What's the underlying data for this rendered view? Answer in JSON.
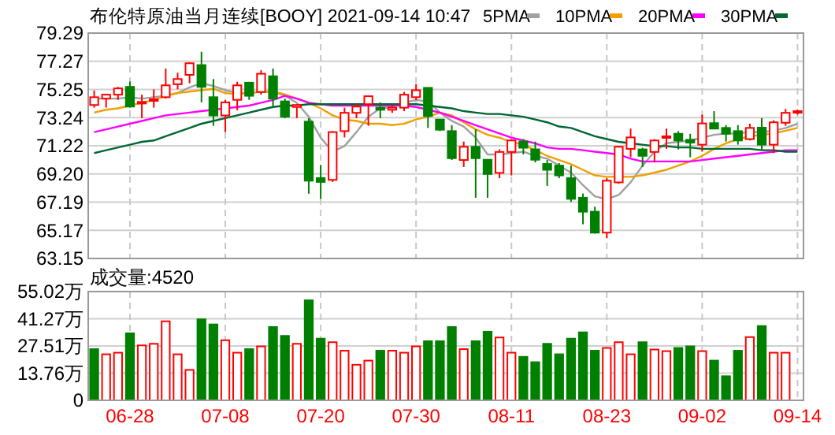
{
  "chart_data": [
    {
      "type": "candlestick",
      "title": "布伦特原油当月连续[BOOY] 2021-09-14 10:47",
      "categories": [
        null,
        null,
        null,
        null,
        null,
        null,
        null,
        null,
        null,
        null,
        null,
        null,
        null,
        null,
        null,
        null,
        null,
        null,
        null,
        null,
        null,
        null,
        null,
        null,
        null,
        null,
        null,
        null,
        null,
        null,
        null,
        null,
        null,
        null,
        null,
        null,
        null,
        null,
        null,
        null,
        null,
        null,
        null,
        null,
        null,
        null,
        null,
        null,
        null,
        null,
        null,
        null,
        null,
        null,
        null,
        null,
        null,
        null,
        null,
        null
      ],
      "ohlc": [
        [
          74.14,
          75.18,
          73.95,
          74.7
        ],
        [
          74.6,
          74.95,
          73.95,
          74.88
        ],
        [
          74.88,
          75.44,
          74.51,
          75.33
        ],
        [
          75.44,
          75.82,
          73.95,
          74.03
        ],
        [
          74.25,
          74.88,
          73.2,
          74.36
        ],
        [
          74.45,
          75.26,
          73.95,
          74.55
        ],
        [
          74.7,
          76.75,
          74.6,
          75.55
        ],
        [
          75.63,
          76.45,
          75.26,
          76.0
        ],
        [
          76.3,
          77.2,
          75.7,
          77.13
        ],
        [
          77.0,
          77.95,
          74.33,
          75.44
        ],
        [
          74.7,
          76.0,
          72.65,
          73.39
        ],
        [
          73.39,
          74.51,
          72.2,
          74.33
        ],
        [
          74.51,
          75.8,
          73.76,
          75.55
        ],
        [
          75.74,
          75.8,
          74.51,
          74.8
        ],
        [
          75.07,
          76.63,
          74.88,
          76.38
        ],
        [
          76.2,
          76.75,
          73.95,
          74.6
        ],
        [
          74.4,
          74.6,
          73.2,
          73.3
        ],
        [
          74.0,
          74.2,
          73.2,
          74.14
        ],
        [
          72.95,
          73.2,
          67.79,
          68.72
        ],
        [
          68.91,
          69.85,
          67.42,
          68.63
        ],
        [
          68.78,
          72.27,
          68.63,
          72.2
        ],
        [
          72.27,
          73.95,
          71.82,
          73.58
        ],
        [
          73.58,
          74.2,
          73.2,
          74.03
        ],
        [
          74.2,
          74.8,
          72.65,
          74.77
        ],
        [
          73.95,
          74.33,
          73.2,
          73.8
        ],
        [
          73.8,
          74.14,
          73.58,
          73.95
        ],
        [
          73.95,
          75.07,
          73.7,
          74.88
        ],
        [
          74.7,
          75.63,
          74.5,
          75.2
        ],
        [
          75.37,
          75.37,
          72.5,
          73.35
        ],
        [
          73.1,
          73.1,
          72.27,
          72.37
        ],
        [
          72.27,
          72.7,
          70.2,
          70.33
        ],
        [
          70.2,
          71.52,
          69.7,
          71.15
        ],
        [
          71.15,
          72.4,
          67.5,
          70.33
        ],
        [
          70.22,
          70.22,
          67.5,
          69.2
        ],
        [
          69.28,
          70.96,
          68.9,
          70.78
        ],
        [
          70.78,
          71.7,
          69.1,
          71.6
        ],
        [
          71.52,
          71.7,
          70.6,
          71.08
        ],
        [
          70.96,
          71.52,
          70.03,
          70.22
        ],
        [
          69.92,
          70.2,
          68.35,
          69.5
        ],
        [
          69.8,
          69.98,
          68.9,
          69.1
        ],
        [
          68.9,
          69.8,
          67.2,
          67.42
        ],
        [
          67.5,
          67.8,
          65.6,
          66.5
        ],
        [
          66.5,
          66.86,
          64.93,
          65.0
        ],
        [
          65.0,
          68.9,
          64.6,
          68.72
        ],
        [
          68.6,
          71.22,
          68.5,
          71.15
        ],
        [
          71.0,
          72.45,
          70.4,
          71.82
        ],
        [
          70.96,
          71.08,
          69.7,
          70.5
        ],
        [
          70.78,
          71.7,
          70.03,
          71.6
        ],
        [
          71.8,
          72.45,
          71.0,
          71.9
        ],
        [
          72.08,
          72.27,
          70.96,
          71.6
        ],
        [
          71.65,
          72.08,
          70.4,
          71.45
        ],
        [
          71.3,
          73.45,
          70.8,
          72.82
        ],
        [
          72.84,
          73.7,
          72.45,
          72.45
        ],
        [
          72.5,
          72.7,
          71.52,
          72.08
        ],
        [
          72.27,
          72.7,
          71.3,
          71.6
        ],
        [
          71.7,
          72.8,
          71.6,
          72.5
        ],
        [
          72.52,
          73.2,
          70.9,
          71.3
        ],
        [
          71.3,
          73.05,
          70.7,
          72.9
        ],
        [
          72.87,
          73.86,
          72.65,
          73.58
        ],
        [
          73.6,
          73.82,
          73.45,
          73.7
        ]
      ],
      "colors": [
        "#ff0000",
        "#ff0000",
        "#ff0000",
        "#008000",
        "#ff0000",
        "#ff0000",
        "#ff0000",
        "#ff0000",
        "#ff0000",
        "#008000",
        "#008000",
        "#ff0000",
        "#ff0000",
        "#008000",
        "#ff0000",
        "#008000",
        "#008000",
        "#ff0000",
        "#008000",
        "#008000",
        "#ff0000",
        "#ff0000",
        "#ff0000",
        "#ff0000",
        "#008000",
        "#ff0000",
        "#ff0000",
        "#ff0000",
        "#008000",
        "#008000",
        "#008000",
        "#ff0000",
        "#008000",
        "#008000",
        "#ff0000",
        "#ff0000",
        "#008000",
        "#008000",
        "#008000",
        "#008000",
        "#008000",
        "#008000",
        "#008000",
        "#ff0000",
        "#ff0000",
        "#ff0000",
        "#008000",
        "#ff0000",
        "#ff0000",
        "#008000",
        "#008000",
        "#ff0000",
        "#008000",
        "#008000",
        "#008000",
        "#ff0000",
        "#008000",
        "#ff0000",
        "#ff0000",
        "#ff0000"
      ],
      "series": [
        {
          "type": "line",
          "name": "5PMA",
          "color": "#a0a0a0",
          "values": [
            74.6,
            74.6,
            74.6,
            74.7,
            74.6,
            74.7,
            74.8,
            75.0,
            75.4,
            75.7,
            75.5,
            75.2,
            75.0,
            75.0,
            75.1,
            75.1,
            74.8,
            74.3,
            73.3,
            71.8,
            70.8,
            71.2,
            72.2,
            73.3,
            73.9,
            74.0,
            74.3,
            74.5,
            74.4,
            73.6,
            73.0,
            72.6,
            71.8,
            70.6,
            70.6,
            70.7,
            70.8,
            70.5,
            70.3,
            69.8,
            69.3,
            68.4,
            67.6,
            67.4,
            67.7,
            68.6,
            69.8,
            70.8,
            71.4,
            71.5,
            71.6,
            71.8,
            72.0,
            72.1,
            72.1,
            72.2,
            72.2,
            72.3,
            72.5,
            72.8
          ]
        },
        {
          "type": "line",
          "name": "10PMA",
          "color": "#f0a000",
          "values": [
            73.6,
            73.8,
            73.9,
            74.1,
            74.3,
            74.5,
            74.8,
            75.0,
            75.1,
            75.2,
            75.3,
            75.0,
            74.9,
            75.0,
            75.1,
            75.1,
            74.9,
            74.6,
            74.3,
            73.9,
            73.4,
            73.1,
            73.0,
            72.8,
            72.8,
            72.7,
            72.8,
            73.1,
            73.3,
            73.6,
            73.4,
            72.9,
            72.4,
            72.0,
            71.8,
            71.5,
            71.3,
            70.9,
            70.5,
            70.2,
            69.9,
            69.5,
            69.1,
            69.0,
            69.0,
            69.0,
            69.1,
            69.3,
            69.5,
            69.8,
            70.1,
            70.5,
            71.0,
            71.4,
            71.7,
            71.9,
            72.0,
            72.1,
            72.3,
            72.5
          ]
        },
        {
          "type": "line",
          "name": "20PMA",
          "color": "#ff00ff",
          "values": [
            72.2,
            72.4,
            72.6,
            72.8,
            73.0,
            73.2,
            73.4,
            73.5,
            73.6,
            73.7,
            73.8,
            73.9,
            74.0,
            74.1,
            74.3,
            74.5,
            74.8,
            74.6,
            74.3,
            74.2,
            74.1,
            74.1,
            74.1,
            74.1,
            74.1,
            74.1,
            74.1,
            74.0,
            73.8,
            73.6,
            73.3,
            73.0,
            72.7,
            72.4,
            72.1,
            71.8,
            71.6,
            71.4,
            71.1,
            71.0,
            71.0,
            70.9,
            70.8,
            70.7,
            70.6,
            70.3,
            70.1,
            70.1,
            70.1,
            70.1,
            70.1,
            70.2,
            70.3,
            70.4,
            70.5,
            70.6,
            70.7,
            70.8,
            70.9,
            70.9
          ]
        },
        {
          "type": "line",
          "name": "30PMA",
          "color": "#006633",
          "values": [
            70.7,
            70.9,
            71.1,
            71.3,
            71.5,
            71.6,
            71.9,
            72.2,
            72.5,
            72.8,
            73.0,
            73.2,
            73.4,
            73.6,
            73.8,
            74.0,
            74.1,
            74.1,
            74.2,
            74.2,
            74.2,
            74.2,
            74.2,
            74.2,
            74.2,
            74.2,
            74.2,
            74.2,
            74.1,
            74.0,
            73.9,
            73.7,
            73.6,
            73.5,
            73.5,
            73.4,
            73.3,
            73.1,
            72.9,
            72.6,
            72.5,
            72.2,
            71.9,
            71.7,
            71.5,
            71.4,
            71.3,
            71.2,
            71.2,
            71.1,
            71.1,
            71.0,
            71.0,
            71.0,
            71.0,
            71.0,
            70.9,
            70.9,
            70.8,
            70.8
          ]
        }
      ],
      "ylim": [
        63.15,
        79.29
      ],
      "yticks": [
        79.29,
        77.27,
        75.25,
        73.24,
        71.22,
        {
          "value": 69.2,
          "label": "69.20"
        },
        67.19,
        65.17,
        63.15
      ],
      "grid": true,
      "legend": "top",
      "tick_labels": "y"
    },
    {
      "type": "bar",
      "title": "成交量:4520",
      "categories": [
        null,
        null,
        null,
        "06-28",
        null,
        null,
        null,
        null,
        null,
        null,
        null,
        "07-08",
        null,
        null,
        null,
        null,
        null,
        null,
        null,
        "07-20",
        null,
        null,
        null,
        null,
        null,
        null,
        null,
        "07-30",
        null,
        null,
        null,
        null,
        null,
        null,
        null,
        "08-11",
        null,
        null,
        null,
        null,
        null,
        null,
        null,
        "08-23",
        null,
        null,
        null,
        null,
        null,
        null,
        null,
        "09-02",
        null,
        null,
        null,
        null,
        null,
        null,
        null,
        "09-14"
      ],
      "values": [
        25.9,
        23.3,
        24.1,
        33.9,
        27.8,
        28.6,
        40.0,
        23.3,
        15.4,
        41.0,
        38.4,
        30.4,
        24.1,
        25.9,
        27.3,
        37.1,
        32.6,
        28.6,
        50.6,
        31.2,
        29.4,
        25.1,
        18.0,
        20.1,
        25.1,
        25.1,
        24.1,
        27.3,
        29.9,
        29.9,
        37.1,
        25.9,
        29.9,
        34.7,
        31.8,
        24.1,
        22.0,
        19.3,
        28.6,
        23.3,
        31.2,
        34.4,
        25.1,
        26.5,
        29.4,
        23.3,
        29.4,
        25.7,
        24.9,
        26.5,
        27.3,
        24.9,
        20.1,
        12.2,
        25.1,
        32.0,
        37.6,
        24.1,
        24.1,
        null
      ],
      "colors": [
        "#008000",
        "#ff0000",
        "#ff0000",
        "#008000",
        "#ff0000",
        "#ff0000",
        "#ff0000",
        "#ff0000",
        "#ff0000",
        "#008000",
        "#008000",
        "#ff0000",
        "#ff0000",
        "#008000",
        "#ff0000",
        "#008000",
        "#008000",
        "#ff0000",
        "#008000",
        "#008000",
        "#ff0000",
        "#ff0000",
        "#ff0000",
        "#ff0000",
        "#008000",
        "#ff0000",
        "#ff0000",
        "#ff0000",
        "#008000",
        "#008000",
        "#008000",
        "#ff0000",
        "#008000",
        "#008000",
        "#ff0000",
        "#ff0000",
        "#008000",
        "#008000",
        "#008000",
        "#008000",
        "#008000",
        "#008000",
        "#008000",
        "#ff0000",
        "#ff0000",
        "#ff0000",
        "#008000",
        "#ff0000",
        "#ff0000",
        "#008000",
        "#008000",
        "#ff0000",
        "#008000",
        "#008000",
        "#008000",
        "#ff0000",
        "#008000",
        "#ff0000",
        "#ff0000",
        null
      ],
      "ylim": [
        0,
        55.02
      ],
      "yticks": [
        0,
        {
          "value": 13.76,
          "label": "13.76万"
        },
        {
          "value": 27.51,
          "label": "27.51万"
        },
        {
          "value": 41.27,
          "label": "41.27万"
        },
        {
          "value": 55.02,
          "label": "55.02万"
        }
      ],
      "grid": true
    }
  ]
}
